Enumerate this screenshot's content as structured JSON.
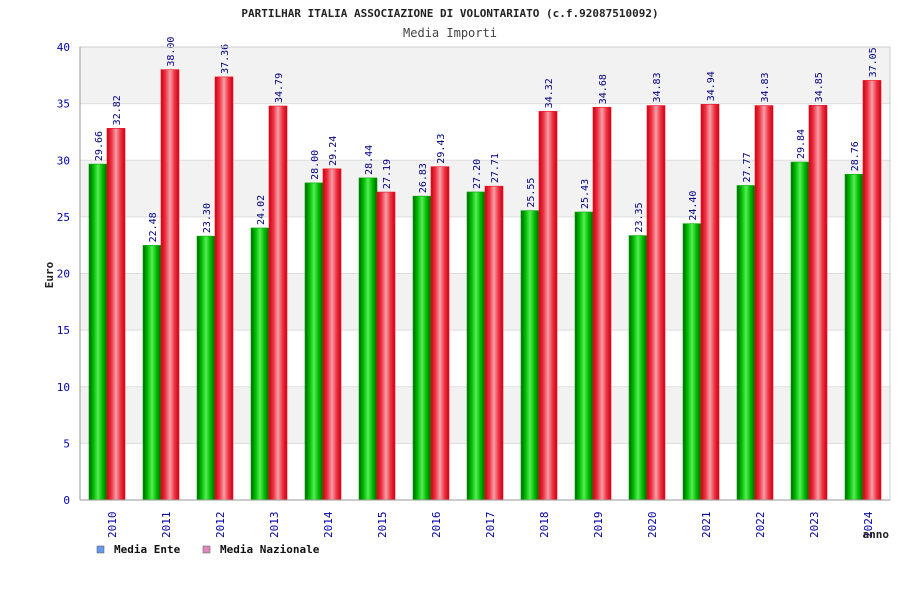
{
  "chart_data": {
    "type": "bar",
    "title": "PARTILHAR ITALIA ASSOCIAZIONE DI VOLONTARIATO (c.f.92087510092)",
    "subtitle": "Media Importi",
    "xlabel": "anno",
    "ylabel": "Euro",
    "ylim": [
      0,
      40
    ],
    "yticks": [
      0,
      5,
      10,
      15,
      20,
      25,
      30,
      35,
      40
    ],
    "categories": [
      "2010",
      "2011",
      "2012",
      "2013",
      "2014",
      "2015",
      "2016",
      "2017",
      "2018",
      "2019",
      "2020",
      "2021",
      "2022",
      "2023",
      "2024"
    ],
    "series": [
      {
        "name": "Media Ente",
        "color": "#00aa00",
        "legend_color": "#6699ee",
        "values": [
          29.66,
          22.48,
          23.3,
          24.02,
          28.0,
          28.44,
          26.83,
          27.2,
          25.55,
          25.43,
          23.35,
          24.4,
          27.77,
          29.84,
          28.76
        ],
        "labels": [
          "29.66",
          "22.48",
          "23.30",
          "24.02",
          "28.00",
          "28.44",
          "26.83",
          "27.20",
          "25.55",
          "25.43",
          "23.35",
          "24.40",
          "27.77",
          "29.84",
          "28.76"
        ]
      },
      {
        "name": "Media Nazionale",
        "color": "#ee1122",
        "legend_color": "#dd88bb",
        "values": [
          32.82,
          38.0,
          37.36,
          34.79,
          29.24,
          27.19,
          29.43,
          27.71,
          34.32,
          34.68,
          34.83,
          34.94,
          34.83,
          34.85,
          37.05
        ],
        "labels": [
          "32.82",
          "38.00",
          "37.36",
          "34.79",
          "29.24",
          "27.19",
          "29.43",
          "27.71",
          "34.32",
          "34.68",
          "34.83",
          "34.94",
          "34.83",
          "34.85",
          "37.05"
        ]
      }
    ],
    "legend_position": "bottom-left",
    "grid": true
  }
}
